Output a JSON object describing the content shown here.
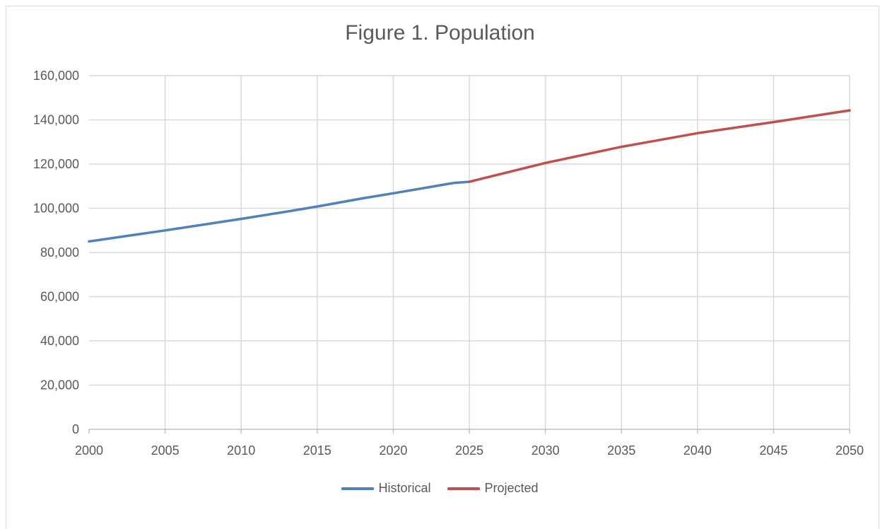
{
  "chart_data": {
    "type": "line",
    "title": "Figure 1. Population",
    "x_ticks": [
      "2000",
      "2005",
      "2010",
      "2015",
      "2020",
      "2025",
      "2030",
      "2035",
      "2040",
      "2045",
      "2050"
    ],
    "y_ticks": [
      "0",
      "20,000",
      "40,000",
      "60,000",
      "80,000",
      "100,000",
      "120,000",
      "140,000",
      "160,000"
    ],
    "xlim": [
      2000,
      2050
    ],
    "ylim": [
      0,
      160000
    ],
    "grid": true,
    "legend_position": "bottom",
    "series": [
      {
        "name": "Historical",
        "color": "#4f81bd",
        "x": [
          2000,
          2003,
          2005,
          2010,
          2013,
          2015,
          2018,
          2020,
          2024,
          2025
        ],
        "y": [
          85000,
          88000,
          90000,
          95200,
          98500,
          100800,
          104500,
          106800,
          111500,
          112000
        ]
      },
      {
        "name": "Projected",
        "color": "#c0504d",
        "x": [
          2025,
          2030,
          2035,
          2040,
          2045,
          2050
        ],
        "y": [
          112000,
          120500,
          127800,
          134000,
          139000,
          144300
        ]
      }
    ]
  }
}
